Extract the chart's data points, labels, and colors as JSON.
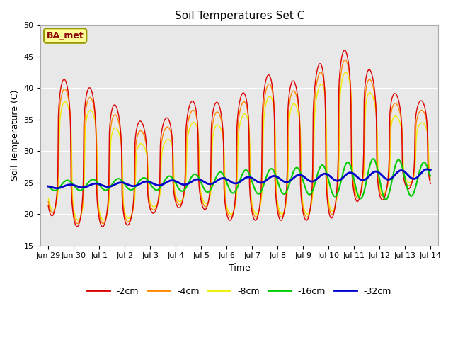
{
  "title": "Soil Temperatures Set C",
  "xlabel": "Time",
  "ylabel": "Soil Temperature (C)",
  "ylim": [
    15,
    50
  ],
  "yticks": [
    15,
    20,
    25,
    30,
    35,
    40,
    45,
    50
  ],
  "background_color": "#ffffff",
  "plot_bg_color": "#e8e8e8",
  "legend_labels": [
    "-2cm",
    "-4cm",
    "-8cm",
    "-16cm",
    "-32cm"
  ],
  "legend_colors": [
    "#dd0000",
    "#ff8800",
    "#eeee00",
    "#00cc00",
    "#0000cc"
  ],
  "annotation_text": "BA_met",
  "annotation_bg": "#ffff99",
  "annotation_border": "#999900",
  "x_tick_labels": [
    "Jun 29",
    "Jun 30",
    "Jul 1",
    "Jul 2",
    "Jul 3",
    "Jul 4",
    "Jul 5",
    "Jul 6",
    "Jul 7",
    "Jul 8",
    "Jul 9",
    "Jul 10",
    "Jul 11",
    "Jul 12",
    "Jul 13",
    "Jul 14"
  ],
  "day_peaks_2cm": [
    42,
    41,
    39.5,
    36,
    34,
    36,
    39,
    37,
    40.5,
    43,
    40,
    46,
    46,
    41,
    38
  ],
  "day_troughs_2cm": [
    20,
    18,
    18,
    18,
    20,
    21,
    21,
    19,
    19,
    19,
    19,
    19,
    22,
    22,
    24
  ],
  "n_points_per_day": 48
}
